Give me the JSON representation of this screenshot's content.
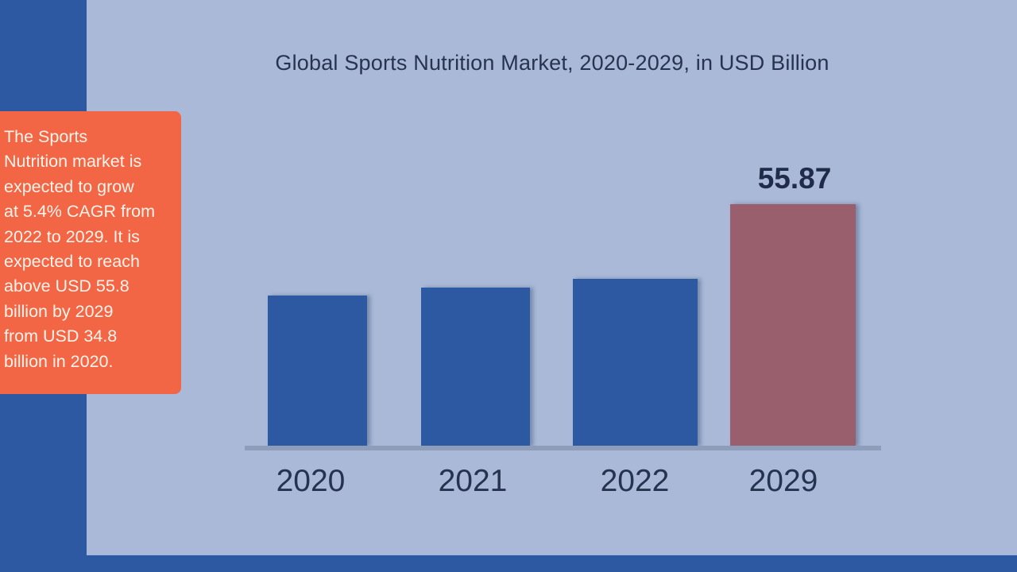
{
  "chart_data": {
    "type": "bar",
    "title": "Global Sports Nutrition Market, 2020-2029, in USD Billion",
    "categories": [
      "2020",
      "2021",
      "2022",
      "2029"
    ],
    "values": [
      34.8,
      36.7,
      38.7,
      55.87
    ],
    "data_labels": {
      "2029": "55.87"
    },
    "xlabel": "",
    "ylabel": "USD Billion",
    "ylim": [
      0,
      60
    ],
    "grid": false,
    "legend": null,
    "colors": [
      "#2d58a2",
      "#2d58a2",
      "#2d58a2",
      "#9a5f6d"
    ]
  },
  "title": "Global Sports Nutrition Market, 2020-2029, in USD Billion",
  "note": {
    "lines": [
      "The Sports",
      "Nutrition market is",
      "expected to grow",
      "at 5.4% CAGR from",
      "2022 to 2029. It is",
      "expected to reach",
      "above USD 55.8",
      "billion by 2029",
      "from USD 34.8",
      "billion in 2020."
    ]
  },
  "highlight_label": "55.87",
  "colors": {
    "background_frame": "#2d58a2",
    "panel": "#a9b9d7",
    "note_box": "#f26645",
    "bar": "#2d58a2",
    "bar_highlight": "#9a5f6d",
    "text": "#27334f"
  }
}
